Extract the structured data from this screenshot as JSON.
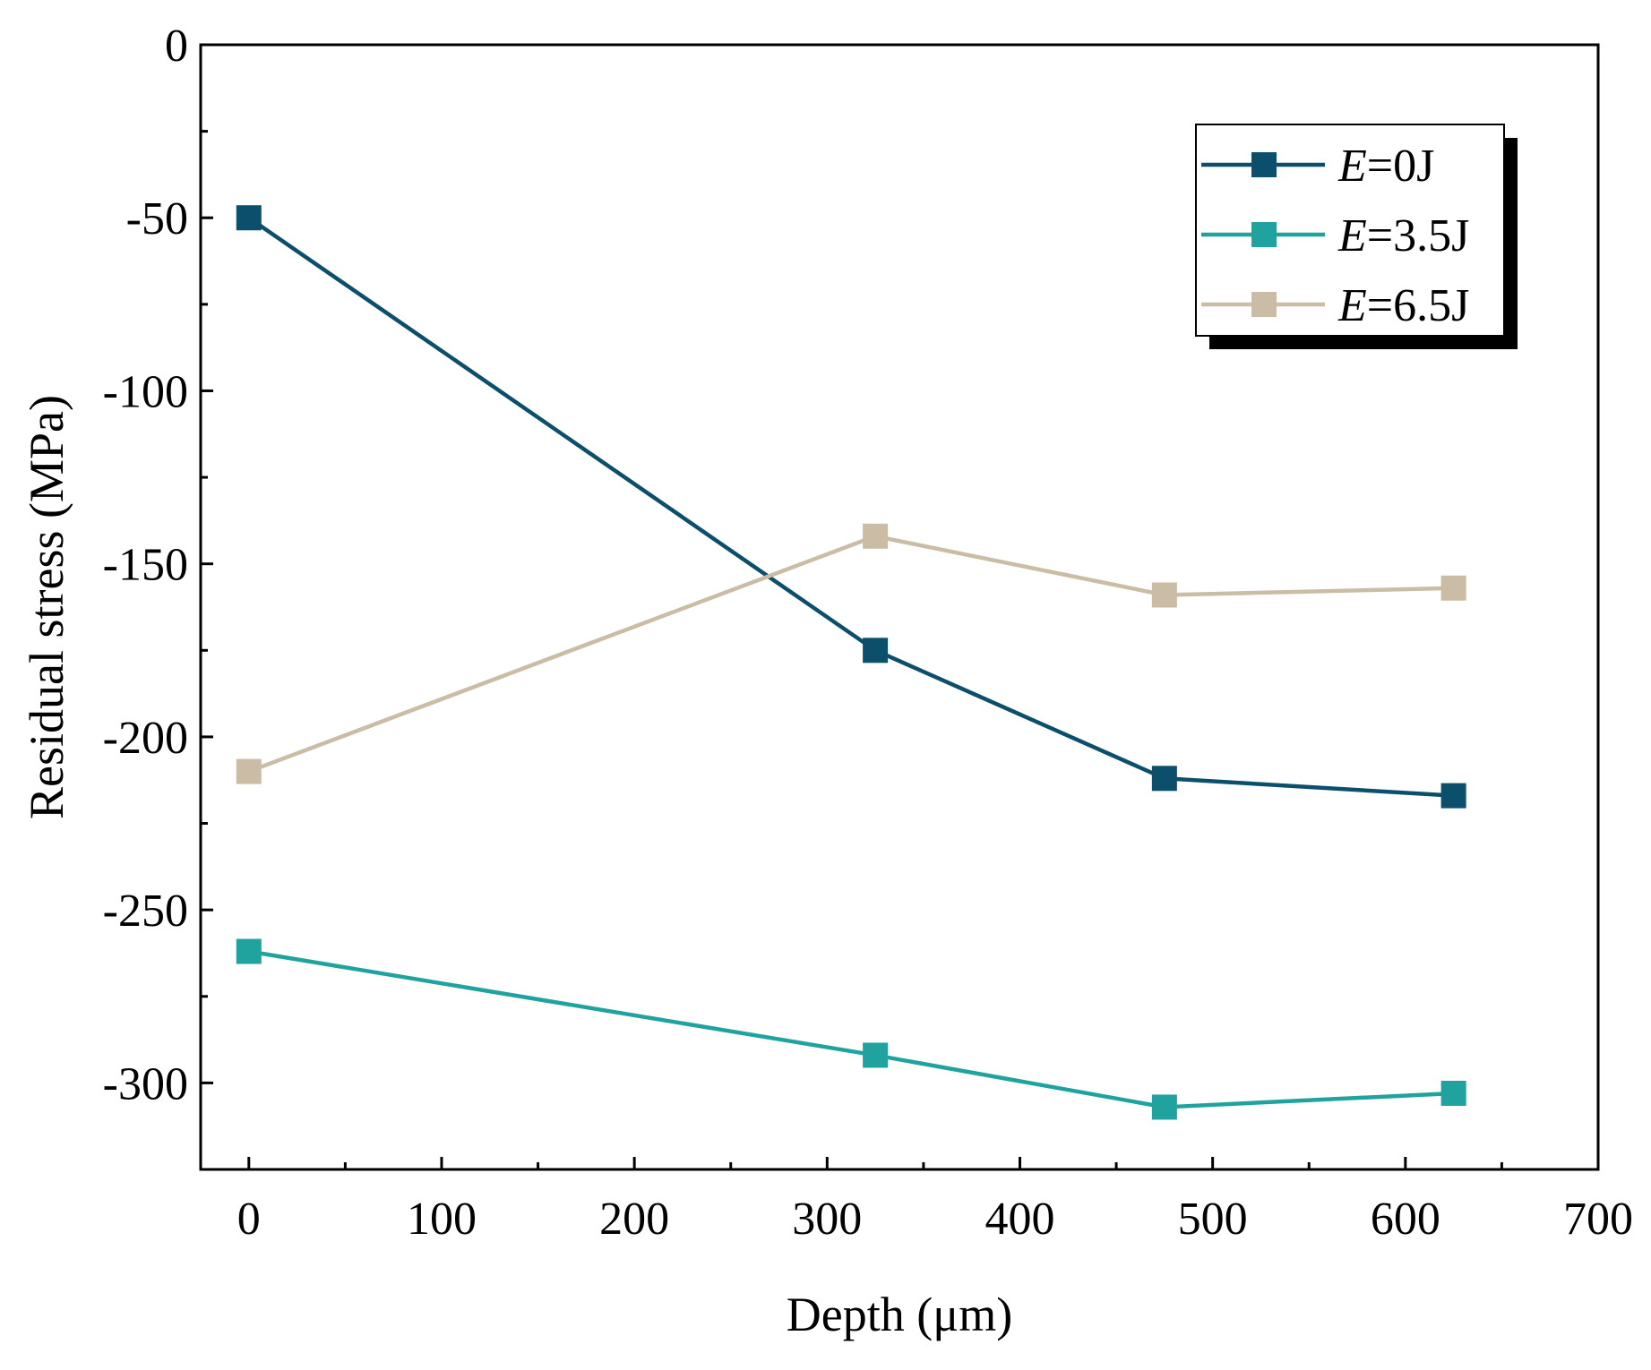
{
  "chart_data": {
    "type": "line",
    "title": "",
    "xlabel": "Depth (μm)",
    "ylabel": "Residual stress (MPa)",
    "xlim": [
      -25,
      700
    ],
    "ylim": [
      -325,
      0
    ],
    "xticks": [
      0,
      100,
      200,
      300,
      400,
      500,
      600,
      700
    ],
    "yticks": [
      0,
      -50,
      -100,
      -150,
      -200,
      -250,
      -300
    ],
    "x": [
      0,
      325,
      475,
      625
    ],
    "legend_position": "top-right",
    "series": [
      {
        "name": "E=0J",
        "letter": "E",
        "suffix": "=0J",
        "color": "#0b4f6c",
        "values": [
          -50,
          -175,
          -212,
          -217
        ]
      },
      {
        "name": "E=3.5J",
        "letter": "E",
        "suffix": "=3.5J",
        "color": "#20a39e",
        "values": [
          -262,
          -292,
          -307,
          -303
        ]
      },
      {
        "name": "E=6.5J",
        "letter": "E",
        "suffix": "=6.5J",
        "color": "#cbbca5",
        "values": [
          -210,
          -142,
          -159,
          -157
        ]
      }
    ]
  }
}
